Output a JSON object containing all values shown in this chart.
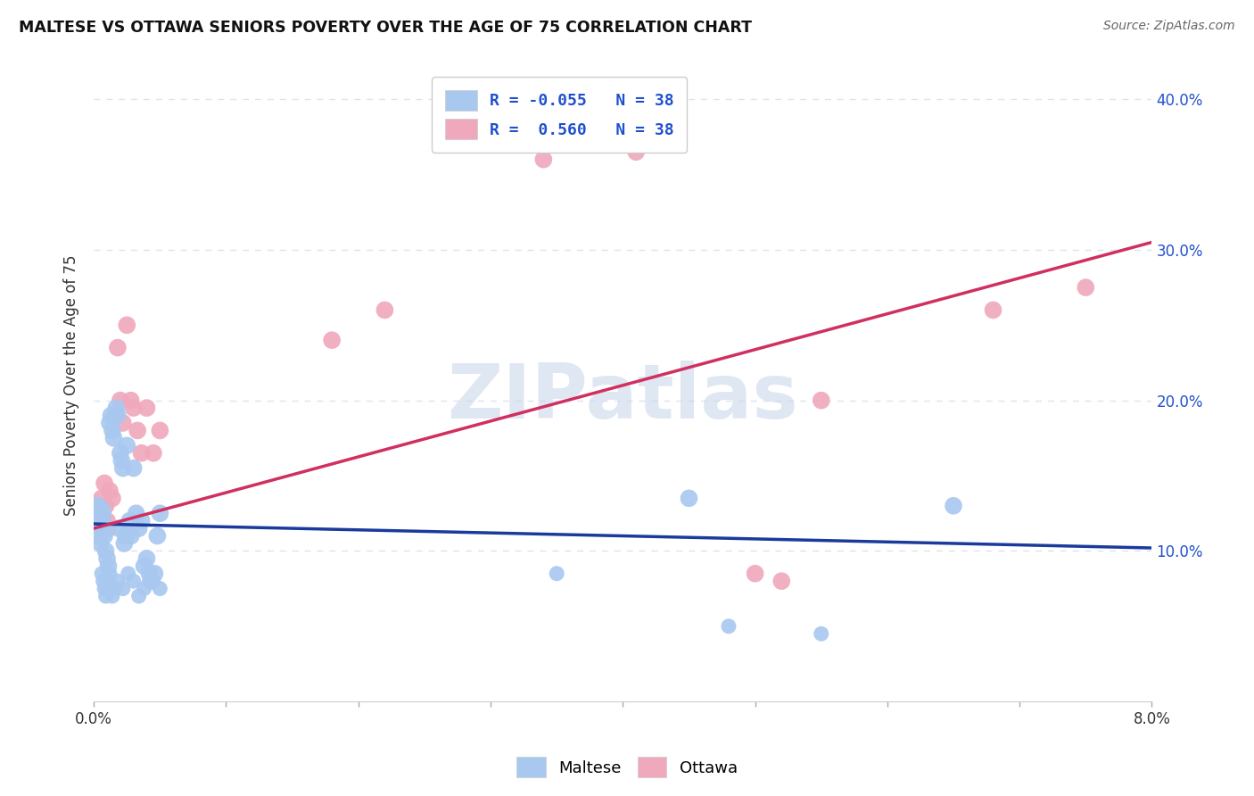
{
  "title": "MALTESE VS OTTAWA SENIORS POVERTY OVER THE AGE OF 75 CORRELATION CHART",
  "source": "Source: ZipAtlas.com",
  "ylabel": "Seniors Poverty Over the Age of 75",
  "xlim": [
    0.0,
    8.0
  ],
  "ylim": [
    0.0,
    42.0
  ],
  "yticks": [
    10.0,
    20.0,
    30.0,
    40.0
  ],
  "maltese_R": -0.055,
  "ottawa_R": 0.56,
  "N": 38,
  "blue_color": "#a8c8f0",
  "pink_color": "#f0a8bc",
  "blue_line_color": "#1a3a9c",
  "pink_line_color": "#d03060",
  "legend_text_color": "#2050cc",
  "maltese_x": [
    0.02,
    0.03,
    0.04,
    0.05,
    0.06,
    0.07,
    0.08,
    0.09,
    0.1,
    0.11,
    0.12,
    0.13,
    0.14,
    0.15,
    0.17,
    0.18,
    0.19,
    0.2,
    0.21,
    0.22,
    0.23,
    0.24,
    0.25,
    0.27,
    0.28,
    0.3,
    0.32,
    0.34,
    0.36,
    0.38,
    0.4,
    0.42,
    0.44,
    0.46,
    0.48,
    0.5,
    4.5,
    6.5
  ],
  "maltese_y": [
    12.5,
    13.0,
    11.0,
    10.5,
    12.0,
    11.5,
    11.0,
    10.0,
    9.5,
    9.0,
    18.5,
    19.0,
    18.0,
    17.5,
    19.5,
    19.0,
    11.5,
    16.5,
    16.0,
    15.5,
    10.5,
    11.0,
    17.0,
    12.0,
    11.0,
    15.5,
    12.5,
    11.5,
    12.0,
    9.0,
    9.5,
    8.5,
    8.0,
    8.5,
    11.0,
    12.5,
    13.5,
    13.0
  ],
  "maltese_sizes": [
    600,
    200,
    200,
    200,
    200,
    200,
    200,
    200,
    200,
    200,
    200,
    200,
    200,
    200,
    200,
    200,
    200,
    200,
    200,
    200,
    200,
    200,
    200,
    200,
    200,
    200,
    200,
    200,
    200,
    200,
    200,
    200,
    200,
    200,
    200,
    200,
    200,
    200
  ],
  "maltese_low_x": [
    0.06,
    0.07,
    0.08,
    0.09,
    0.1,
    0.11,
    0.12,
    0.14,
    0.16,
    0.18,
    0.22,
    0.26,
    0.3,
    0.34,
    0.38,
    0.42,
    0.5,
    3.5,
    4.8,
    5.5
  ],
  "maltese_low_y": [
    8.5,
    8.0,
    7.5,
    7.0,
    7.5,
    8.0,
    8.5,
    7.0,
    7.5,
    8.0,
    7.5,
    8.5,
    8.0,
    7.0,
    7.5,
    8.0,
    7.5,
    8.5,
    5.0,
    4.5
  ],
  "ottawa_x": [
    0.02,
    0.03,
    0.04,
    0.05,
    0.06,
    0.07,
    0.08,
    0.09,
    0.1,
    0.11,
    0.12,
    0.14,
    0.16,
    0.18,
    0.2,
    0.22,
    0.25,
    0.28,
    0.3,
    0.33,
    0.36,
    0.4,
    0.45,
    0.5,
    1.8,
    2.2,
    3.4,
    4.1,
    5.0,
    5.2,
    5.5,
    6.8,
    7.5
  ],
  "ottawa_y": [
    12.5,
    13.0,
    12.0,
    11.5,
    13.5,
    12.0,
    14.5,
    13.0,
    12.0,
    11.5,
    14.0,
    13.5,
    19.0,
    23.5,
    20.0,
    18.5,
    25.0,
    20.0,
    19.5,
    18.0,
    16.5,
    19.5,
    16.5,
    18.0,
    24.0,
    26.0,
    36.0,
    36.5,
    8.5,
    8.0,
    20.0,
    26.0,
    27.5
  ],
  "ottawa_sizes": [
    200,
    200,
    200,
    200,
    200,
    200,
    200,
    200,
    200,
    200,
    200,
    200,
    200,
    200,
    200,
    200,
    200,
    200,
    200,
    200,
    200,
    200,
    200,
    200,
    200,
    200,
    200,
    200,
    200,
    200,
    200,
    200,
    200
  ],
  "blue_trend_x": [
    0.0,
    8.0
  ],
  "blue_trend_y": [
    11.8,
    10.2
  ],
  "pink_trend_x": [
    0.0,
    8.0
  ],
  "pink_trend_y": [
    11.5,
    30.5
  ],
  "watermark": "ZIPatlas",
  "background_color": "#ffffff",
  "grid_color": "#dce4f0",
  "plot_bg": "#ffffff"
}
